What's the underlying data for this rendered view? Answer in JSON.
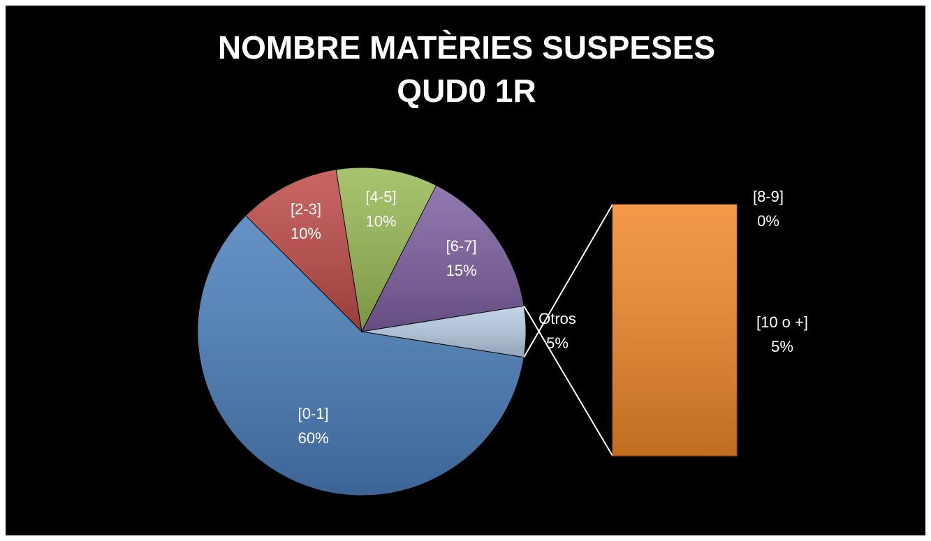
{
  "chart_data": {
    "type": "pie-of-bar",
    "title": [
      "NOMBRE MATÈRIES SUSPESES",
      "QUD0 1R"
    ],
    "categories": [
      "[0-1]",
      "[2-3]",
      "[4-5]",
      "[6-7]",
      "Otros"
    ],
    "values": [
      60,
      10,
      10,
      15,
      5
    ],
    "value_labels": [
      "60%",
      "10%",
      "10%",
      "15%",
      "5%"
    ],
    "colors": [
      "#4a7ebb",
      "#be4b48",
      "#98b954",
      "#7d60a0",
      "#b9cde5"
    ],
    "secondary": {
      "categories": [
        "[8-9]",
        "[10 o +]"
      ],
      "values": [
        0,
        5
      ],
      "value_labels": [
        "0%",
        "5%"
      ],
      "color": "#f0882a"
    }
  }
}
